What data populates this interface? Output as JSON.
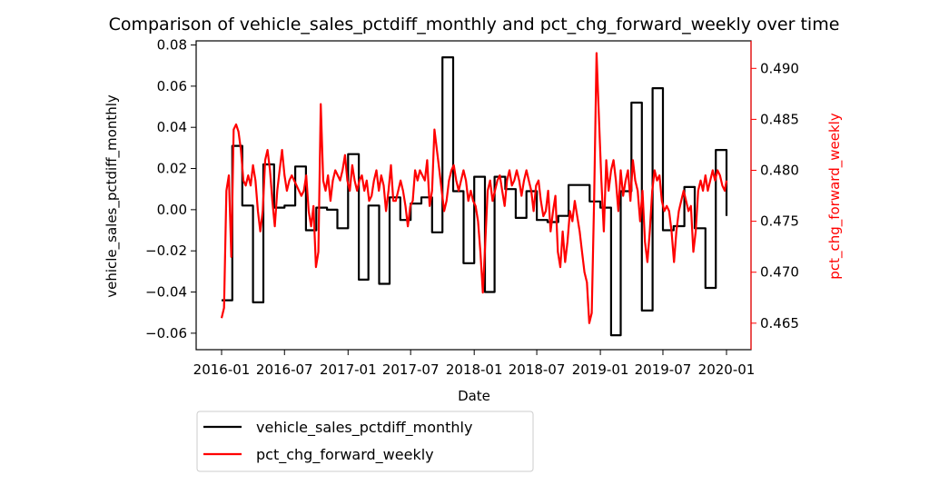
{
  "chart_data": {
    "type": "line",
    "title": "Comparison of vehicle_sales_pctdiff_monthly and pct_chg_forward_weekly over time",
    "xlabel": "Date",
    "ylabel_left": "vehicle_sales_pctdiff_monthly",
    "ylabel_right": "pct_chg_forward_weekly",
    "xlim": [
      "2016-01-01",
      "2020-01-01"
    ],
    "x_ticks": [
      "2016-01",
      "2016-07",
      "2017-01",
      "2017-07",
      "2018-01",
      "2018-07",
      "2019-01",
      "2019-07",
      "2020-01"
    ],
    "ylim_left": [
      -0.068,
      0.082
    ],
    "ylim_right": [
      0.4624,
      0.4927
    ],
    "y_ticks_left": [
      "−0.06",
      "−0.04",
      "−0.02",
      "0.00",
      "0.02",
      "0.04",
      "0.06",
      "0.08"
    ],
    "y_ticks_right": [
      "0.465",
      "0.470",
      "0.475",
      "0.480",
      "0.485",
      "0.490"
    ],
    "legend_position": "below-left",
    "colors": {
      "series1": "#000000",
      "series2": "#ff0000"
    },
    "series": [
      {
        "name": "vehicle_sales_pctdiff_monthly",
        "axis": "left",
        "step": true,
        "points": [
          [
            "2016-01-01",
            -0.044
          ],
          [
            "2016-02-01",
            0.031
          ],
          [
            "2016-03-01",
            0.002
          ],
          [
            "2016-04-01",
            -0.045
          ],
          [
            "2016-05-01",
            0.022
          ],
          [
            "2016-06-01",
            0.001
          ],
          [
            "2016-07-01",
            0.002
          ],
          [
            "2016-08-01",
            0.021
          ],
          [
            "2016-09-01",
            -0.01
          ],
          [
            "2016-10-01",
            0.001
          ],
          [
            "2016-11-01",
            0.0
          ],
          [
            "2016-12-01",
            -0.009
          ],
          [
            "2017-01-01",
            0.027
          ],
          [
            "2017-02-01",
            -0.034
          ],
          [
            "2017-03-01",
            0.002
          ],
          [
            "2017-04-01",
            -0.036
          ],
          [
            "2017-05-01",
            0.006
          ],
          [
            "2017-06-01",
            -0.005
          ],
          [
            "2017-07-01",
            0.003
          ],
          [
            "2017-08-01",
            0.006
          ],
          [
            "2017-09-01",
            -0.011
          ],
          [
            "2017-10-01",
            0.074
          ],
          [
            "2017-11-01",
            0.009
          ],
          [
            "2017-12-01",
            -0.026
          ],
          [
            "2018-01-01",
            0.016
          ],
          [
            "2018-02-01",
            -0.04
          ],
          [
            "2018-03-01",
            0.016
          ],
          [
            "2018-04-01",
            0.01
          ],
          [
            "2018-05-01",
            -0.004
          ],
          [
            "2018-06-01",
            0.009
          ],
          [
            "2018-07-01",
            -0.005
          ],
          [
            "2018-08-01",
            -0.006
          ],
          [
            "2018-09-01",
            -0.003
          ],
          [
            "2018-10-01",
            0.012
          ],
          [
            "2018-11-01",
            0.012
          ],
          [
            "2018-12-01",
            0.004
          ],
          [
            "2019-01-01",
            0.001
          ],
          [
            "2019-02-01",
            -0.061
          ],
          [
            "2019-03-01",
            0.009
          ],
          [
            "2019-04-01",
            0.052
          ],
          [
            "2019-05-01",
            -0.049
          ],
          [
            "2019-06-01",
            0.059
          ],
          [
            "2019-07-01",
            -0.01
          ],
          [
            "2019-08-01",
            -0.008
          ],
          [
            "2019-09-01",
            0.011
          ],
          [
            "2019-10-01",
            -0.009
          ],
          [
            "2019-11-01",
            -0.038
          ],
          [
            "2019-12-01",
            0.029
          ],
          [
            "2020-01-01",
            -0.003
          ]
        ]
      },
      {
        "name": "pct_chg_forward_weekly",
        "axis": "right",
        "step": false,
        "points": [
          [
            "2016-01-01",
            0.4655
          ],
          [
            "2016-01-08",
            0.4665
          ],
          [
            "2016-01-15",
            0.478
          ],
          [
            "2016-01-22",
            0.4795
          ],
          [
            "2016-01-29",
            0.4715
          ],
          [
            "2016-02-05",
            0.484
          ],
          [
            "2016-02-12",
            0.4845
          ],
          [
            "2016-02-19",
            0.4838
          ],
          [
            "2016-02-26",
            0.482
          ],
          [
            "2016-03-04",
            0.479
          ],
          [
            "2016-03-11",
            0.4785
          ],
          [
            "2016-03-18",
            0.4795
          ],
          [
            "2016-03-25",
            0.4785
          ],
          [
            "2016-04-01",
            0.4805
          ],
          [
            "2016-04-08",
            0.479
          ],
          [
            "2016-04-15",
            0.476
          ],
          [
            "2016-04-22",
            0.474
          ],
          [
            "2016-04-29",
            0.476
          ],
          [
            "2016-05-06",
            0.481
          ],
          [
            "2016-05-13",
            0.482
          ],
          [
            "2016-05-20",
            0.48
          ],
          [
            "2016-05-27",
            0.477
          ],
          [
            "2016-06-03",
            0.4745
          ],
          [
            "2016-06-10",
            0.478
          ],
          [
            "2016-06-17",
            0.48
          ],
          [
            "2016-06-24",
            0.482
          ],
          [
            "2016-07-01",
            0.4795
          ],
          [
            "2016-07-08",
            0.478
          ],
          [
            "2016-07-15",
            0.479
          ],
          [
            "2016-07-22",
            0.4795
          ],
          [
            "2016-07-29",
            0.479
          ],
          [
            "2016-08-05",
            0.4785
          ],
          [
            "2016-08-12",
            0.478
          ],
          [
            "2016-08-19",
            0.4775
          ],
          [
            "2016-08-26",
            0.478
          ],
          [
            "2016-09-02",
            0.4795
          ],
          [
            "2016-09-09",
            0.476
          ],
          [
            "2016-09-16",
            0.4745
          ],
          [
            "2016-09-23",
            0.4765
          ],
          [
            "2016-09-30",
            0.4705
          ],
          [
            "2016-10-07",
            0.472
          ],
          [
            "2016-10-14",
            0.4865
          ],
          [
            "2016-10-21",
            0.479
          ],
          [
            "2016-10-28",
            0.478
          ],
          [
            "2016-11-04",
            0.4795
          ],
          [
            "2016-11-11",
            0.477
          ],
          [
            "2016-11-18",
            0.479
          ],
          [
            "2016-11-25",
            0.48
          ],
          [
            "2016-12-02",
            0.4795
          ],
          [
            "2016-12-09",
            0.479
          ],
          [
            "2016-12-16",
            0.48
          ],
          [
            "2016-12-23",
            0.4815
          ],
          [
            "2016-12-30",
            0.479
          ],
          [
            "2017-01-06",
            0.478
          ],
          [
            "2017-01-13",
            0.4805
          ],
          [
            "2017-01-20",
            0.479
          ],
          [
            "2017-01-27",
            0.478
          ],
          [
            "2017-02-03",
            0.479
          ],
          [
            "2017-02-10",
            0.4795
          ],
          [
            "2017-02-17",
            0.478
          ],
          [
            "2017-02-24",
            0.479
          ],
          [
            "2017-03-03",
            0.477
          ],
          [
            "2017-03-10",
            0.4775
          ],
          [
            "2017-03-17",
            0.479
          ],
          [
            "2017-03-24",
            0.48
          ],
          [
            "2017-03-31",
            0.478
          ],
          [
            "2017-04-07",
            0.4795
          ],
          [
            "2017-04-14",
            0.4785
          ],
          [
            "2017-04-21",
            0.476
          ],
          [
            "2017-04-28",
            0.478
          ],
          [
            "2017-05-05",
            0.4805
          ],
          [
            "2017-05-12",
            0.477
          ],
          [
            "2017-05-19",
            0.477
          ],
          [
            "2017-05-26",
            0.478
          ],
          [
            "2017-06-02",
            0.479
          ],
          [
            "2017-06-09",
            0.478
          ],
          [
            "2017-06-16",
            0.4765
          ],
          [
            "2017-06-23",
            0.4745
          ],
          [
            "2017-06-30",
            0.4765
          ],
          [
            "2017-07-07",
            0.477
          ],
          [
            "2017-07-14",
            0.48
          ],
          [
            "2017-07-21",
            0.479
          ],
          [
            "2017-07-28",
            0.48
          ],
          [
            "2017-08-04",
            0.4795
          ],
          [
            "2017-08-11",
            0.479
          ],
          [
            "2017-08-18",
            0.481
          ],
          [
            "2017-08-25",
            0.4765
          ],
          [
            "2017-09-01",
            0.478
          ],
          [
            "2017-09-08",
            0.484
          ],
          [
            "2017-09-15",
            0.482
          ],
          [
            "2017-09-22",
            0.48
          ],
          [
            "2017-09-29",
            0.478
          ],
          [
            "2017-10-06",
            0.476
          ],
          [
            "2017-10-13",
            0.477
          ],
          [
            "2017-10-20",
            0.479
          ],
          [
            "2017-10-27",
            0.48
          ],
          [
            "2017-11-03",
            0.4805
          ],
          [
            "2017-11-10",
            0.479
          ],
          [
            "2017-11-17",
            0.478
          ],
          [
            "2017-11-24",
            0.479
          ],
          [
            "2017-12-01",
            0.48
          ],
          [
            "2017-12-08",
            0.479
          ],
          [
            "2017-12-15",
            0.477
          ],
          [
            "2017-12-22",
            0.478
          ],
          [
            "2017-12-29",
            0.477
          ],
          [
            "2018-01-05",
            0.4765
          ],
          [
            "2018-01-12",
            0.475
          ],
          [
            "2018-01-19",
            0.472
          ],
          [
            "2018-01-26",
            0.468
          ],
          [
            "2018-02-02",
            0.473
          ],
          [
            "2018-02-09",
            0.478
          ],
          [
            "2018-02-16",
            0.479
          ],
          [
            "2018-02-23",
            0.477
          ],
          [
            "2018-03-02",
            0.478
          ],
          [
            "2018-03-09",
            0.479
          ],
          [
            "2018-03-16",
            0.4795
          ],
          [
            "2018-03-23",
            0.478
          ],
          [
            "2018-03-30",
            0.4765
          ],
          [
            "2018-04-06",
            0.479
          ],
          [
            "2018-04-13",
            0.48
          ],
          [
            "2018-04-20",
            0.4785
          ],
          [
            "2018-04-27",
            0.479
          ],
          [
            "2018-05-04",
            0.48
          ],
          [
            "2018-05-11",
            0.479
          ],
          [
            "2018-05-18",
            0.4775
          ],
          [
            "2018-05-25",
            0.479
          ],
          [
            "2018-06-01",
            0.48
          ],
          [
            "2018-06-08",
            0.479
          ],
          [
            "2018-06-15",
            0.478
          ],
          [
            "2018-06-22",
            0.476
          ],
          [
            "2018-06-29",
            0.4785
          ],
          [
            "2018-07-06",
            0.479
          ],
          [
            "2018-07-13",
            0.477
          ],
          [
            "2018-07-20",
            0.4755
          ],
          [
            "2018-07-27",
            0.476
          ],
          [
            "2018-08-03",
            0.478
          ],
          [
            "2018-08-10",
            0.474
          ],
          [
            "2018-08-17",
            0.476
          ],
          [
            "2018-08-24",
            0.4775
          ],
          [
            "2018-08-31",
            0.472
          ],
          [
            "2018-09-07",
            0.4705
          ],
          [
            "2018-09-14",
            0.474
          ],
          [
            "2018-09-21",
            0.471
          ],
          [
            "2018-09-28",
            0.473
          ],
          [
            "2018-10-05",
            0.476
          ],
          [
            "2018-10-12",
            0.475
          ],
          [
            "2018-10-19",
            0.477
          ],
          [
            "2018-10-26",
            0.4755
          ],
          [
            "2018-11-02",
            0.474
          ],
          [
            "2018-11-09",
            0.472
          ],
          [
            "2018-11-16",
            0.47
          ],
          [
            "2018-11-23",
            0.469
          ],
          [
            "2018-11-30",
            0.465
          ],
          [
            "2018-12-07",
            0.466
          ],
          [
            "2018-12-14",
            0.477
          ],
          [
            "2018-12-21",
            0.4915
          ],
          [
            "2018-12-28",
            0.485
          ],
          [
            "2019-01-04",
            0.479
          ],
          [
            "2019-01-11",
            0.474
          ],
          [
            "2019-01-18",
            0.481
          ],
          [
            "2019-01-25",
            0.478
          ],
          [
            "2019-02-01",
            0.48
          ],
          [
            "2019-02-08",
            0.481
          ],
          [
            "2019-02-15",
            0.479
          ],
          [
            "2019-02-22",
            0.476
          ],
          [
            "2019-03-01",
            0.48
          ],
          [
            "2019-03-08",
            0.4775
          ],
          [
            "2019-03-15",
            0.479
          ],
          [
            "2019-03-22",
            0.48
          ],
          [
            "2019-03-29",
            0.477
          ],
          [
            "2019-04-05",
            0.481
          ],
          [
            "2019-04-12",
            0.479
          ],
          [
            "2019-04-19",
            0.478
          ],
          [
            "2019-04-26",
            0.475
          ],
          [
            "2019-05-03",
            0.478
          ],
          [
            "2019-05-10",
            0.473
          ],
          [
            "2019-05-17",
            0.471
          ],
          [
            "2019-05-24",
            0.474
          ],
          [
            "2019-05-31",
            0.478
          ],
          [
            "2019-06-07",
            0.48
          ],
          [
            "2019-06-14",
            0.479
          ],
          [
            "2019-06-21",
            0.4795
          ],
          [
            "2019-06-28",
            0.477
          ],
          [
            "2019-07-05",
            0.476
          ],
          [
            "2019-07-12",
            0.4765
          ],
          [
            "2019-07-19",
            0.476
          ],
          [
            "2019-07-26",
            0.474
          ],
          [
            "2019-08-02",
            0.471
          ],
          [
            "2019-08-09",
            0.474
          ],
          [
            "2019-08-16",
            0.476
          ],
          [
            "2019-08-23",
            0.477
          ],
          [
            "2019-08-30",
            0.478
          ],
          [
            "2019-09-06",
            0.477
          ],
          [
            "2019-09-13",
            0.476
          ],
          [
            "2019-09-20",
            0.4765
          ],
          [
            "2019-09-27",
            0.472
          ],
          [
            "2019-10-04",
            0.474
          ],
          [
            "2019-10-11",
            0.478
          ],
          [
            "2019-10-18",
            0.479
          ],
          [
            "2019-10-25",
            0.478
          ],
          [
            "2019-11-01",
            0.4795
          ],
          [
            "2019-11-08",
            0.478
          ],
          [
            "2019-11-15",
            0.479
          ],
          [
            "2019-11-22",
            0.48
          ],
          [
            "2019-11-29",
            0.479
          ],
          [
            "2019-12-06",
            0.48
          ],
          [
            "2019-12-13",
            0.4795
          ],
          [
            "2019-12-20",
            0.4785
          ],
          [
            "2019-12-27",
            0.478
          ],
          [
            "2020-01-01",
            0.479
          ]
        ]
      }
    ]
  }
}
